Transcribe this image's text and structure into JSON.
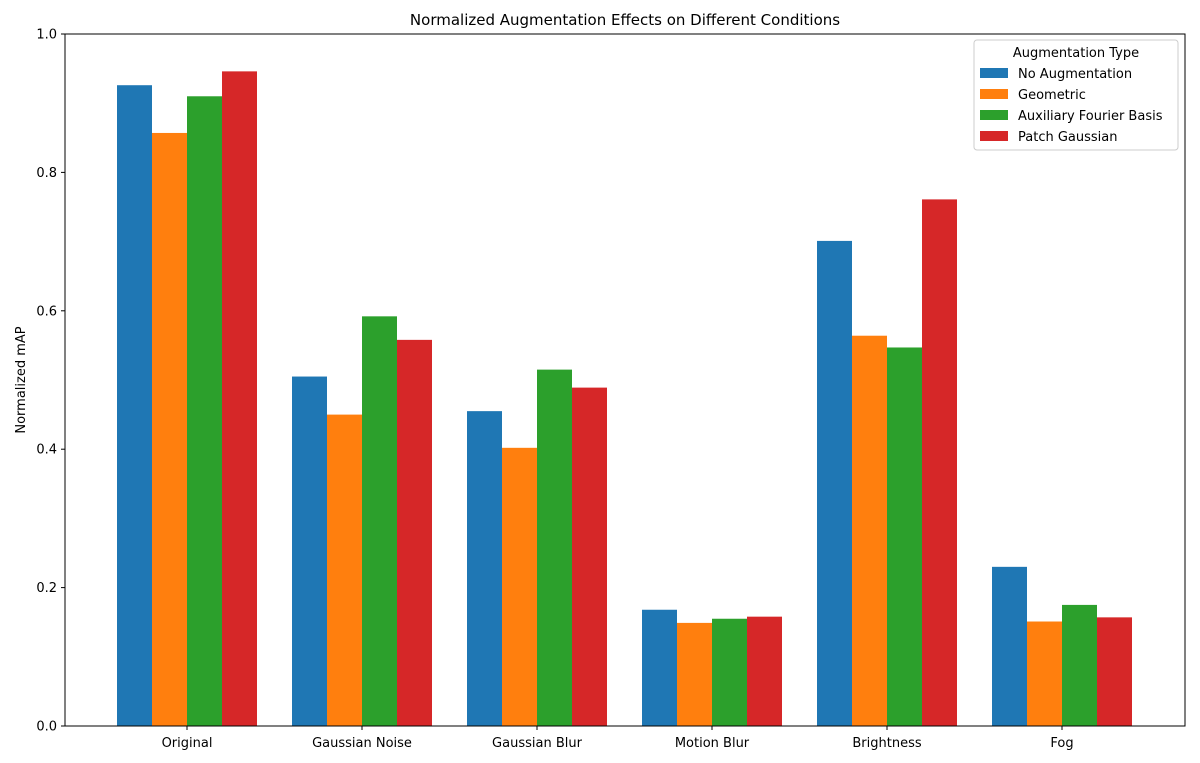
{
  "chart_data": {
    "type": "bar",
    "title": "Normalized Augmentation Effects on Different Conditions",
    "xlabel": "",
    "ylabel": "Normalized mAP",
    "ylim": [
      0,
      1.0
    ],
    "yticks": [
      0.0,
      0.2,
      0.4,
      0.6,
      0.8,
      1.0
    ],
    "ytick_labels": [
      "0.0",
      "0.2",
      "0.4",
      "0.6",
      "0.8",
      "1.0"
    ],
    "categories": [
      "Original",
      "Gaussian Noise",
      "Gaussian Blur",
      "Motion Blur",
      "Brightness",
      "Fog"
    ],
    "legend": {
      "title": "Augmentation Type",
      "position": "top-right"
    },
    "grid": false,
    "series": [
      {
        "name": "No Augmentation",
        "color": "#1f77b4",
        "values": [
          0.926,
          0.505,
          0.455,
          0.168,
          0.701,
          0.23
        ]
      },
      {
        "name": "Geometric",
        "color": "#ff7f0e",
        "values": [
          0.857,
          0.45,
          0.402,
          0.149,
          0.564,
          0.151
        ]
      },
      {
        "name": "Auxiliary Fourier Basis",
        "color": "#2ca02c",
        "values": [
          0.91,
          0.592,
          0.515,
          0.155,
          0.547,
          0.175
        ]
      },
      {
        "name": "Patch Gaussian",
        "color": "#d62728",
        "values": [
          0.946,
          0.558,
          0.489,
          0.158,
          0.761,
          0.157
        ]
      }
    ]
  }
}
